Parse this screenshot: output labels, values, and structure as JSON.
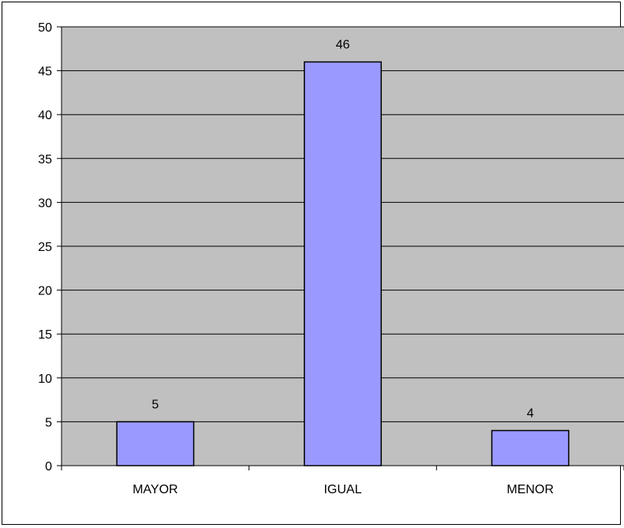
{
  "chart_data": {
    "type": "bar",
    "title": "",
    "xlabel": "",
    "ylabel": "",
    "categories": [
      "MAYOR",
      "IGUAL",
      "MENOR"
    ],
    "values": [
      5,
      46,
      4
    ],
    "data_labels": [
      "5",
      "46",
      "4"
    ],
    "ylim": [
      0,
      50
    ],
    "yticks": [
      0,
      5,
      10,
      15,
      20,
      25,
      30,
      35,
      40,
      45,
      50
    ],
    "grid": true,
    "legend": "none",
    "colors": {
      "bar_fill": "#9999ff",
      "bar_stroke": "#000000",
      "plot_background": "#c0c0c0",
      "gridline": "#000000"
    }
  }
}
